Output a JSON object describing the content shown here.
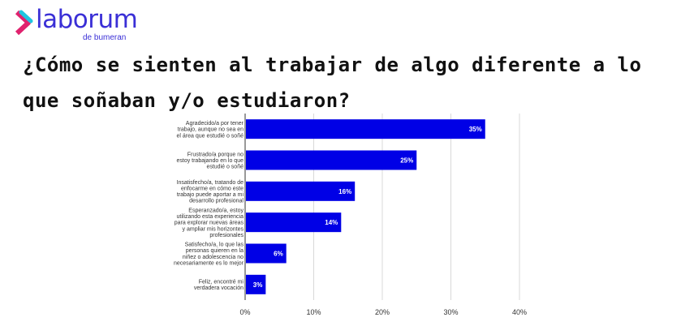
{
  "logo": {
    "name": "laborum",
    "sub": "de bumeran"
  },
  "title": "¿Cómo se sienten al trabajar de algo diferente a lo que soñaban y/o estudiaron?",
  "colors": {
    "bar": "#0000e6",
    "grid": "#d9d9d9",
    "brand": "#3a2fd6"
  },
  "chart_data": {
    "type": "bar",
    "orientation": "horizontal",
    "title": "¿Cómo se sienten al trabajar de algo diferente a lo que soñaban y/o estudiaron?",
    "categories": [
      [
        "Agradecido/a por tener",
        "trabajo, aunque no sea en",
        "el área que estudié o soñé"
      ],
      [
        "Frustrado/a porque no",
        "estoy trabajando en lo que",
        "estudié o soñé"
      ],
      [
        "Insatisfecho/a, tratando de",
        "enfocarme en cómo este",
        "trabajo puede aportar a mi",
        "desarrollo profesional"
      ],
      [
        "Esperanzado/a, estoy",
        "utilizando esta experiencia",
        "para explorar nuevas áreas",
        "y ampliar mis horizontes",
        "profesionales"
      ],
      [
        "Satisfecho/a, lo que las",
        "personas quieren en la",
        "niñez o adolescencia no",
        "necesariamente es lo mejor"
      ],
      [
        "Feliz, encontré mi",
        "verdadera vocación"
      ]
    ],
    "values": [
      35,
      25,
      16,
      14,
      6,
      3
    ],
    "data_labels": [
      "35%",
      "25%",
      "16%",
      "14%",
      "6%",
      "3%"
    ],
    "xticks": [
      "0%",
      "10%",
      "20%",
      "30%",
      "40%"
    ],
    "xlim": [
      0,
      40
    ],
    "grid": true,
    "legend": "none"
  }
}
